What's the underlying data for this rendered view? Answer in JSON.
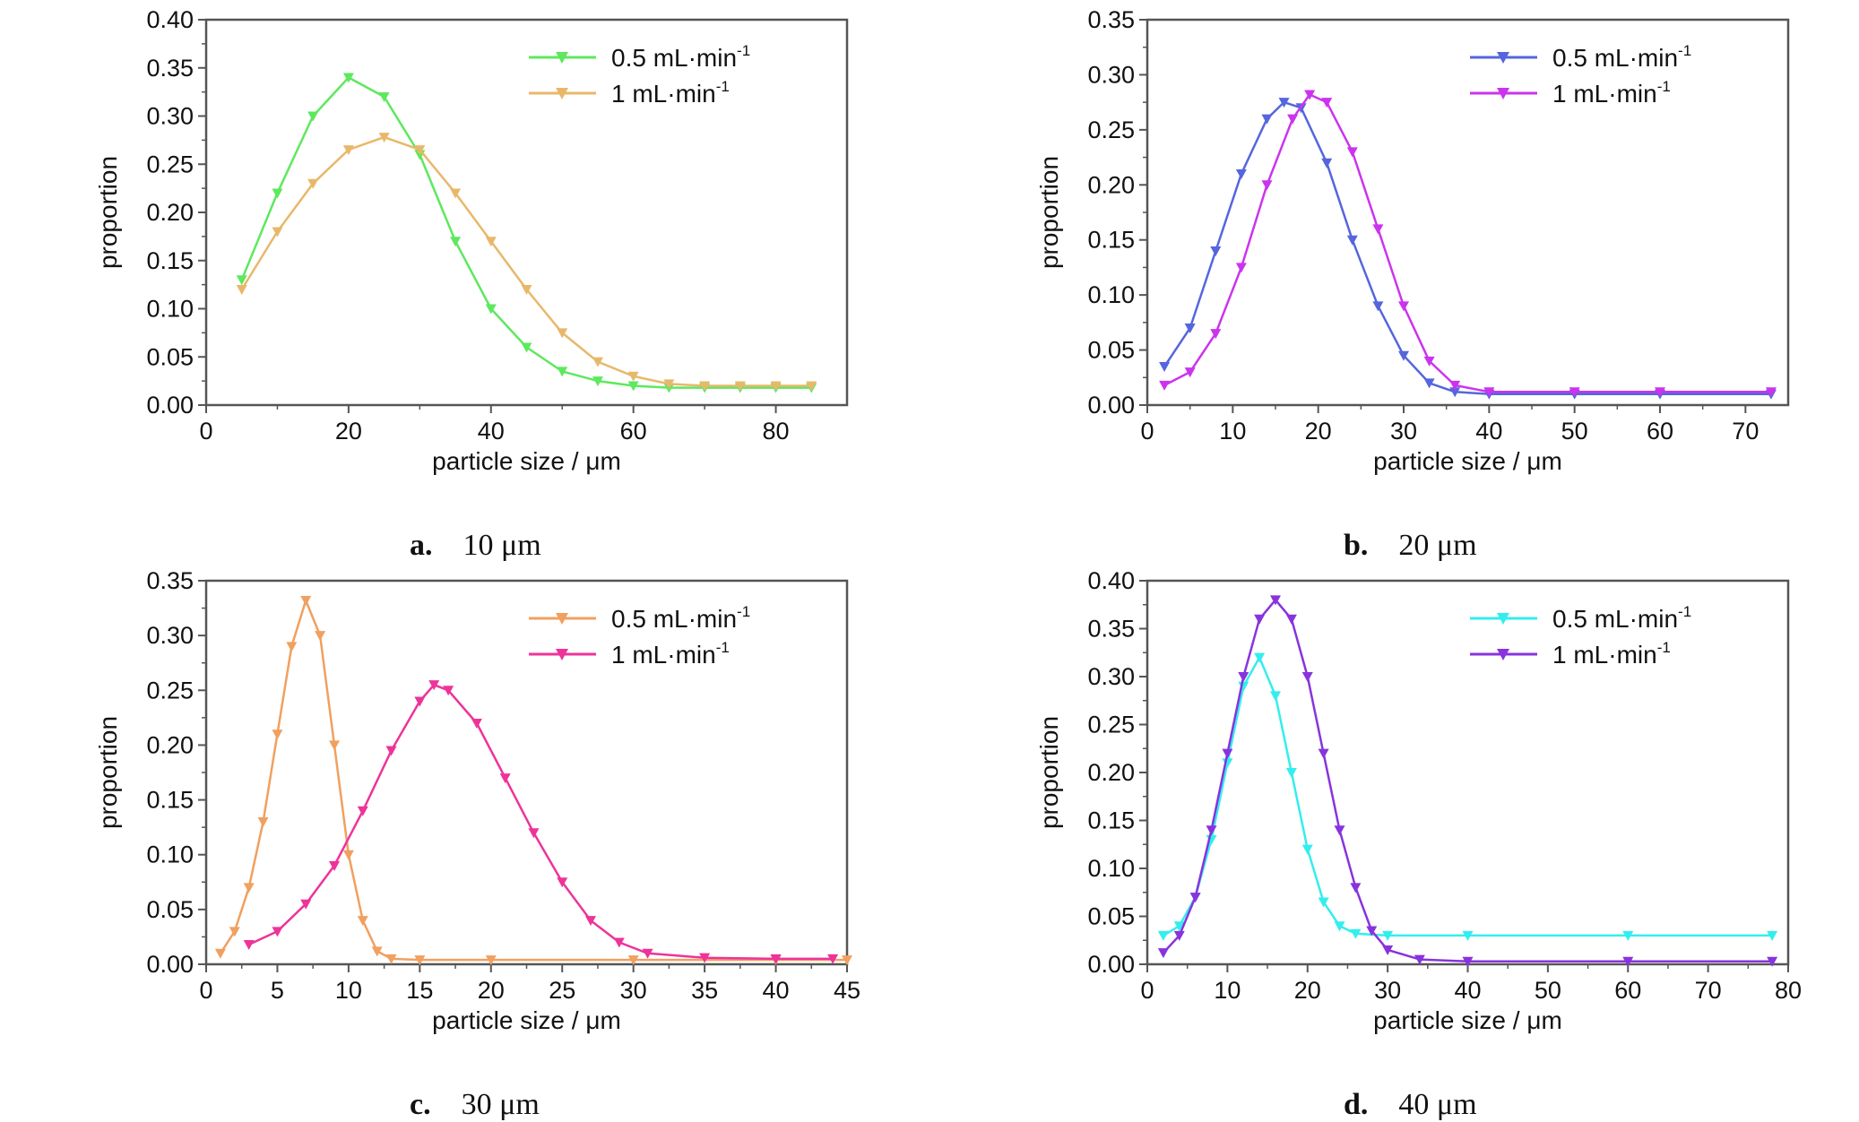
{
  "chart_data": [
    {
      "type": "line",
      "panel_label": "a.",
      "panel_title": "10 μm",
      "xlabel": "particle size / μm",
      "ylabel": "proportion",
      "xlim": [
        0,
        90
      ],
      "ylim": [
        0,
        0.4
      ],
      "xticks": [
        0,
        20,
        40,
        60,
        80
      ],
      "yticks": [
        "0.00",
        "0.05",
        "0.10",
        "0.15",
        "0.20",
        "0.25",
        "0.30",
        "0.35",
        "0.40"
      ],
      "legend_position": "top-right",
      "grid": false,
      "series": [
        {
          "name": "0.5 mL·min",
          "superscript": "-1",
          "color": "#5ee85e",
          "marker": "triangle-down",
          "x": [
            5,
            10,
            15,
            20,
            25,
            30,
            35,
            40,
            45,
            50,
            55,
            60,
            65,
            70,
            75,
            80,
            85
          ],
          "y": [
            0.13,
            0.22,
            0.3,
            0.34,
            0.32,
            0.26,
            0.17,
            0.1,
            0.06,
            0.035,
            0.025,
            0.02,
            0.018,
            0.018,
            0.018,
            0.018,
            0.018
          ]
        },
        {
          "name": "1 mL·min",
          "superscript": "-1",
          "color": "#e8b86a",
          "marker": "triangle-down",
          "x": [
            5,
            10,
            15,
            20,
            25,
            30,
            35,
            40,
            45,
            50,
            55,
            60,
            65,
            70,
            75,
            80,
            85
          ],
          "y": [
            0.12,
            0.18,
            0.23,
            0.265,
            0.278,
            0.265,
            0.22,
            0.17,
            0.12,
            0.075,
            0.045,
            0.03,
            0.022,
            0.02,
            0.02,
            0.02,
            0.02
          ]
        }
      ]
    },
    {
      "type": "line",
      "panel_label": "b.",
      "panel_title": "20 μm",
      "xlabel": "particle size / μm",
      "ylabel": "proportion",
      "xlim": [
        0,
        75
      ],
      "ylim": [
        0,
        0.35
      ],
      "xticks": [
        0,
        10,
        20,
        30,
        40,
        50,
        60,
        70
      ],
      "yticks": [
        "0.00",
        "0.05",
        "0.10",
        "0.15",
        "0.20",
        "0.25",
        "0.30",
        "0.35"
      ],
      "legend_position": "top-right",
      "grid": false,
      "series": [
        {
          "name": "0.5 mL·min",
          "superscript": "-1",
          "color": "#5566dd",
          "marker": "triangle-down",
          "x": [
            2,
            5,
            8,
            11,
            14,
            16,
            18,
            21,
            24,
            27,
            30,
            33,
            36,
            40,
            50,
            60,
            73
          ],
          "y": [
            0.035,
            0.07,
            0.14,
            0.21,
            0.26,
            0.275,
            0.27,
            0.22,
            0.15,
            0.09,
            0.045,
            0.02,
            0.012,
            0.01,
            0.01,
            0.01,
            0.01
          ]
        },
        {
          "name": "1 mL·min",
          "superscript": "-1",
          "color": "#cc33ee",
          "marker": "triangle-down",
          "x": [
            2,
            5,
            8,
            11,
            14,
            17,
            19,
            21,
            24,
            27,
            30,
            33,
            36,
            40,
            50,
            60,
            73
          ],
          "y": [
            0.018,
            0.03,
            0.065,
            0.125,
            0.2,
            0.26,
            0.282,
            0.275,
            0.23,
            0.16,
            0.09,
            0.04,
            0.018,
            0.012,
            0.012,
            0.012,
            0.012
          ]
        }
      ]
    },
    {
      "type": "line",
      "panel_label": "c.",
      "panel_title": "30 μm",
      "xlabel": "particle size / μm",
      "ylabel": "proportion",
      "xlim": [
        0,
        45
      ],
      "ylim": [
        0,
        0.35
      ],
      "xticks": [
        0,
        5,
        10,
        15,
        20,
        25,
        30,
        35,
        40,
        45
      ],
      "yticks": [
        "0.00",
        "0.05",
        "0.10",
        "0.15",
        "0.20",
        "0.25",
        "0.30",
        "0.35"
      ],
      "legend_position": "top-right",
      "grid": false,
      "series": [
        {
          "name": "0.5 mL·min",
          "superscript": "-1",
          "color": "#f0a060",
          "marker": "triangle-down",
          "x": [
            1,
            2,
            3,
            4,
            5,
            6,
            7,
            8,
            9,
            10,
            11,
            12,
            13,
            15,
            20,
            30,
            40,
            45
          ],
          "y": [
            0.01,
            0.03,
            0.07,
            0.13,
            0.21,
            0.29,
            0.332,
            0.3,
            0.2,
            0.1,
            0.04,
            0.012,
            0.005,
            0.004,
            0.004,
            0.004,
            0.004,
            0.004
          ]
        },
        {
          "name": "1 mL·min",
          "superscript": "-1",
          "color": "#ee3399",
          "marker": "triangle-down",
          "x": [
            3,
            5,
            7,
            9,
            11,
            13,
            15,
            16,
            17,
            19,
            21,
            23,
            25,
            27,
            29,
            31,
            35,
            40,
            44
          ],
          "y": [
            0.018,
            0.03,
            0.055,
            0.09,
            0.14,
            0.195,
            0.24,
            0.255,
            0.25,
            0.22,
            0.17,
            0.12,
            0.075,
            0.04,
            0.02,
            0.01,
            0.006,
            0.005,
            0.005
          ]
        }
      ]
    },
    {
      "type": "line",
      "panel_label": "d.",
      "panel_title": "40 μm",
      "xlabel": "particle size / μm",
      "ylabel": "proportion",
      "xlim": [
        0,
        80
      ],
      "ylim": [
        0,
        0.4
      ],
      "xticks": [
        0,
        10,
        20,
        30,
        40,
        50,
        60,
        70,
        80
      ],
      "yticks": [
        "0.00",
        "0.05",
        "0.10",
        "0.15",
        "0.20",
        "0.25",
        "0.30",
        "0.35",
        "0.40"
      ],
      "legend_position": "top-right",
      "grid": false,
      "series": [
        {
          "name": "0.5 mL·min",
          "superscript": "-1",
          "color": "#33eeee",
          "marker": "triangle-down",
          "x": [
            2,
            4,
            6,
            8,
            10,
            12,
            14,
            16,
            18,
            20,
            22,
            24,
            26,
            30,
            40,
            60,
            78
          ],
          "y": [
            0.03,
            0.04,
            0.07,
            0.13,
            0.21,
            0.29,
            0.32,
            0.28,
            0.2,
            0.12,
            0.065,
            0.04,
            0.032,
            0.03,
            0.03,
            0.03,
            0.03
          ]
        },
        {
          "name": "1 mL·min",
          "superscript": "-1",
          "color": "#8833dd",
          "marker": "triangle-down",
          "x": [
            2,
            4,
            6,
            8,
            10,
            12,
            14,
            16,
            18,
            20,
            22,
            24,
            26,
            28,
            30,
            34,
            40,
            60,
            78
          ],
          "y": [
            0.012,
            0.03,
            0.07,
            0.14,
            0.22,
            0.3,
            0.36,
            0.38,
            0.36,
            0.3,
            0.22,
            0.14,
            0.08,
            0.035,
            0.015,
            0.005,
            0.003,
            0.003,
            0.003
          ]
        }
      ]
    }
  ]
}
